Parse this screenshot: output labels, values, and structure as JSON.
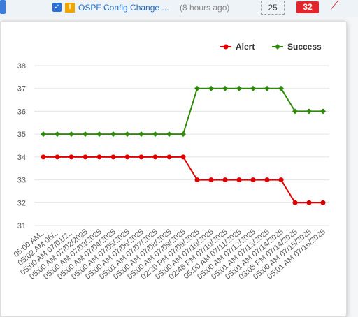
{
  "header_row": {
    "badge": "I",
    "title": "OSPF Config Change ...",
    "time": "(8 hours ago)",
    "count": 25,
    "alerts": 32
  },
  "chart_data": {
    "type": "line",
    "categories": [
      "05:00 AM...",
      "05:02 AM 06/...",
      "05:00 AM 07/01/2...",
      "05:00 AM 07/02/2025",
      "05:00 AM 07/03/2025",
      "05:00 AM 07/04/2025",
      "05:00 AM 07/05/2025",
      "05:00 AM 07/06/2025",
      "05:01 AM 07/07/2025",
      "05:00 AM 07/08/2025",
      "05:00 AM 07/09/2025",
      "02:20 PM 07/09/2025",
      "05:00 AM 07/10/2025",
      "02:46 PM 07/10/2025",
      "05:00 AM 07/11/2025",
      "05:00 AM 07/12/2025",
      "05:01 AM 07/13/2025",
      "05:01 AM 07/14/2025",
      "03:05 PM 07/14/2025",
      "05:00 AM 07/15/2025",
      "05:01 AM 07/16/2025"
    ],
    "series": [
      {
        "name": "Alert",
        "color": "#e00000",
        "marker": "circle",
        "values": [
          34,
          34,
          34,
          34,
          34,
          34,
          34,
          34,
          34,
          34,
          34,
          33,
          33,
          33,
          33,
          33,
          33,
          33,
          32,
          32,
          32
        ]
      },
      {
        "name": "Success",
        "color": "#2f8a0c",
        "marker": "diamond",
        "values": [
          35,
          35,
          35,
          35,
          35,
          35,
          35,
          35,
          35,
          35,
          35,
          37,
          37,
          37,
          37,
          37,
          37,
          37,
          36,
          36,
          36
        ]
      }
    ],
    "ylim": [
      31,
      38
    ],
    "yticks": [
      31,
      32,
      33,
      34,
      35,
      36,
      37,
      38
    ],
    "grid": true,
    "legend": "top-right"
  }
}
